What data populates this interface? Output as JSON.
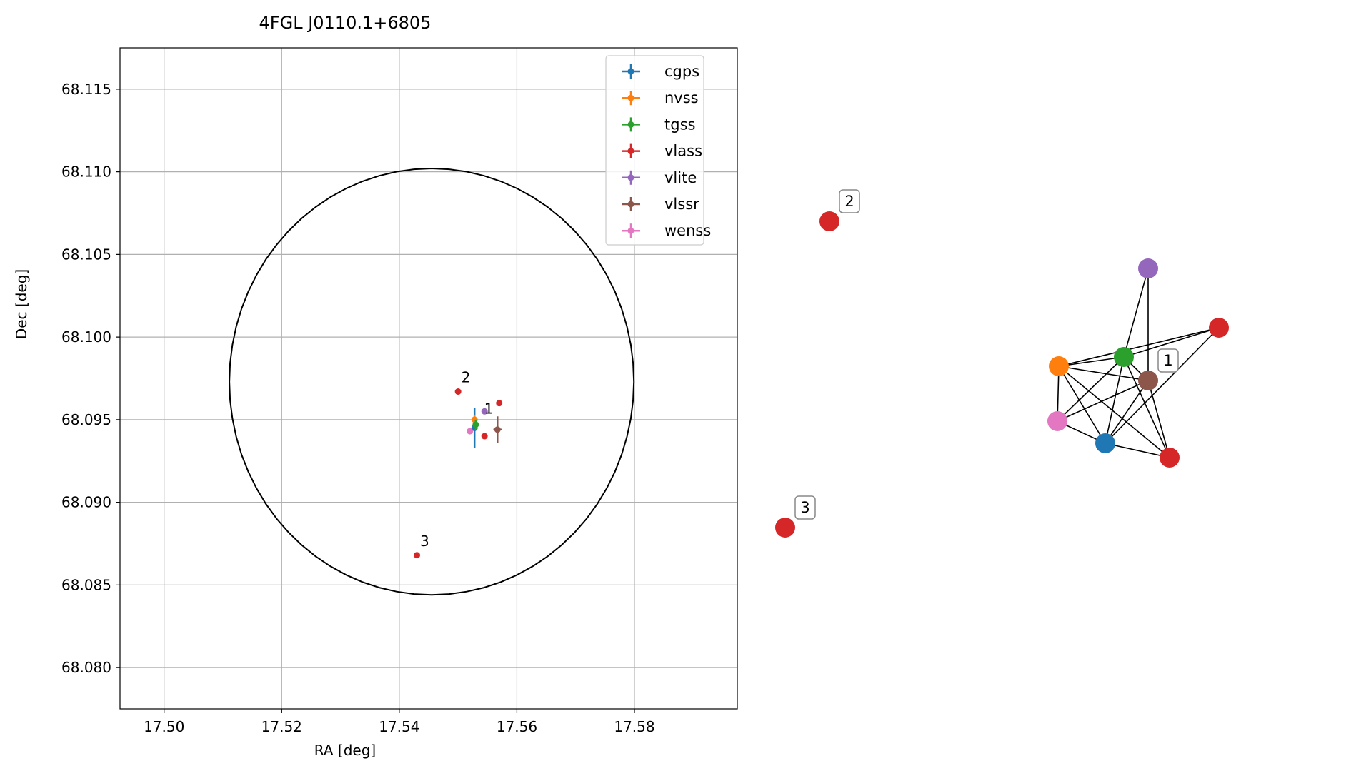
{
  "chart_data": [
    {
      "type": "scatter",
      "title": "4FGL J0110.1+6805",
      "xlabel": "RA [deg]",
      "ylabel": "Dec [deg]",
      "xlim": [
        17.4925,
        17.5975
      ],
      "ylim": [
        68.0775,
        68.1175
      ],
      "xticks": [
        17.5,
        17.52,
        17.54,
        17.56,
        17.58
      ],
      "xtick_labels": [
        "17.50",
        "17.52",
        "17.54",
        "17.56",
        "17.58"
      ],
      "yticks": [
        68.08,
        68.085,
        68.09,
        68.095,
        68.1,
        68.105,
        68.11,
        68.115
      ],
      "ytick_labels": [
        "68.080",
        "68.085",
        "68.090",
        "68.095",
        "68.100",
        "68.105",
        "68.110",
        "68.115"
      ],
      "grid": true,
      "legend_position": "top-right",
      "ellipse": {
        "ra_center": 17.5455,
        "dec_center": 68.0973,
        "ra_half_width": 0.0344,
        "dec_half_height": 0.0129,
        "color": "#000000"
      },
      "series": [
        {
          "name": "cgps",
          "color": "#1f77b4",
          "points": [
            {
              "ra": 17.5528,
              "dec": 68.0945,
              "ra_err": 0.0001,
              "dec_err": 0.0012
            }
          ]
        },
        {
          "name": "nvss",
          "color": "#ff7f0e",
          "points": [
            {
              "ra": 17.5528,
              "dec": 68.095,
              "ra_err": 0.0003,
              "dec_err": 0.0003
            }
          ]
        },
        {
          "name": "tgss",
          "color": "#2ca02c",
          "points": [
            {
              "ra": 17.553,
              "dec": 68.0947,
              "ra_err": 0.0003,
              "dec_err": 0.0003
            }
          ]
        },
        {
          "name": "vlass",
          "color": "#d62728",
          "points": [
            {
              "ra": 17.55,
              "dec": 68.0967,
              "ra_err": 0,
              "dec_err": 0
            },
            {
              "ra": 17.557,
              "dec": 68.096,
              "ra_err": 0,
              "dec_err": 0
            },
            {
              "ra": 17.5545,
              "dec": 68.094,
              "ra_err": 0,
              "dec_err": 0
            },
            {
              "ra": 17.543,
              "dec": 68.0868,
              "ra_err": 0,
              "dec_err": 0
            }
          ]
        },
        {
          "name": "vlite",
          "color": "#9467bd",
          "points": [
            {
              "ra": 17.5545,
              "dec": 68.0955,
              "ra_err": 0,
              "dec_err": 0
            }
          ]
        },
        {
          "name": "vlssr",
          "color": "#8c564b",
          "points": [
            {
              "ra": 17.5567,
              "dec": 68.0944,
              "ra_err": 0.0007,
              "dec_err": 0.0008
            }
          ]
        },
        {
          "name": "wenss",
          "color": "#e377c2",
          "points": [
            {
              "ra": 17.552,
              "dec": 68.0943,
              "ra_err": 0,
              "dec_err": 0
            }
          ]
        }
      ],
      "annotations": [
        {
          "text": "1",
          "ra": 17.5542,
          "dec": 68.0951
        },
        {
          "text": "2",
          "ra": 17.5503,
          "dec": 68.097
        },
        {
          "text": "3",
          "ra": 17.5433,
          "dec": 68.0871
        }
      ]
    },
    {
      "type": "network",
      "nodes": [
        {
          "id": "n2",
          "color": "#d62728",
          "label": "2"
        },
        {
          "id": "n3",
          "color": "#d62728",
          "label": "3"
        },
        {
          "id": "vlite",
          "color": "#9467bd",
          "label": ""
        },
        {
          "id": "vlassA",
          "color": "#d62728",
          "label": ""
        },
        {
          "id": "tgss",
          "color": "#2ca02c",
          "label": ""
        },
        {
          "id": "vlssr",
          "color": "#8c564b",
          "label": "1"
        },
        {
          "id": "nvss",
          "color": "#ff7f0e",
          "label": ""
        },
        {
          "id": "wenss",
          "color": "#e377c2",
          "label": ""
        },
        {
          "id": "cgps",
          "color": "#1f77b4",
          "label": ""
        },
        {
          "id": "vlassB",
          "color": "#d62728",
          "label": ""
        }
      ],
      "edges": [
        [
          "vlite",
          "tgss"
        ],
        [
          "vlite",
          "vlssr"
        ],
        [
          "vlassA",
          "nvss"
        ],
        [
          "vlassA",
          "tgss"
        ],
        [
          "vlassA",
          "cgps"
        ],
        [
          "nvss",
          "tgss"
        ],
        [
          "nvss",
          "vlssr"
        ],
        [
          "nvss",
          "wenss"
        ],
        [
          "nvss",
          "cgps"
        ],
        [
          "nvss",
          "vlassB"
        ],
        [
          "tgss",
          "wenss"
        ],
        [
          "tgss",
          "cgps"
        ],
        [
          "tgss",
          "vlassB"
        ],
        [
          "tgss",
          "vlssr"
        ],
        [
          "vlssr",
          "wenss"
        ],
        [
          "vlssr",
          "cgps"
        ],
        [
          "vlssr",
          "vlassB"
        ],
        [
          "wenss",
          "cgps"
        ],
        [
          "cgps",
          "vlassB"
        ]
      ]
    }
  ]
}
